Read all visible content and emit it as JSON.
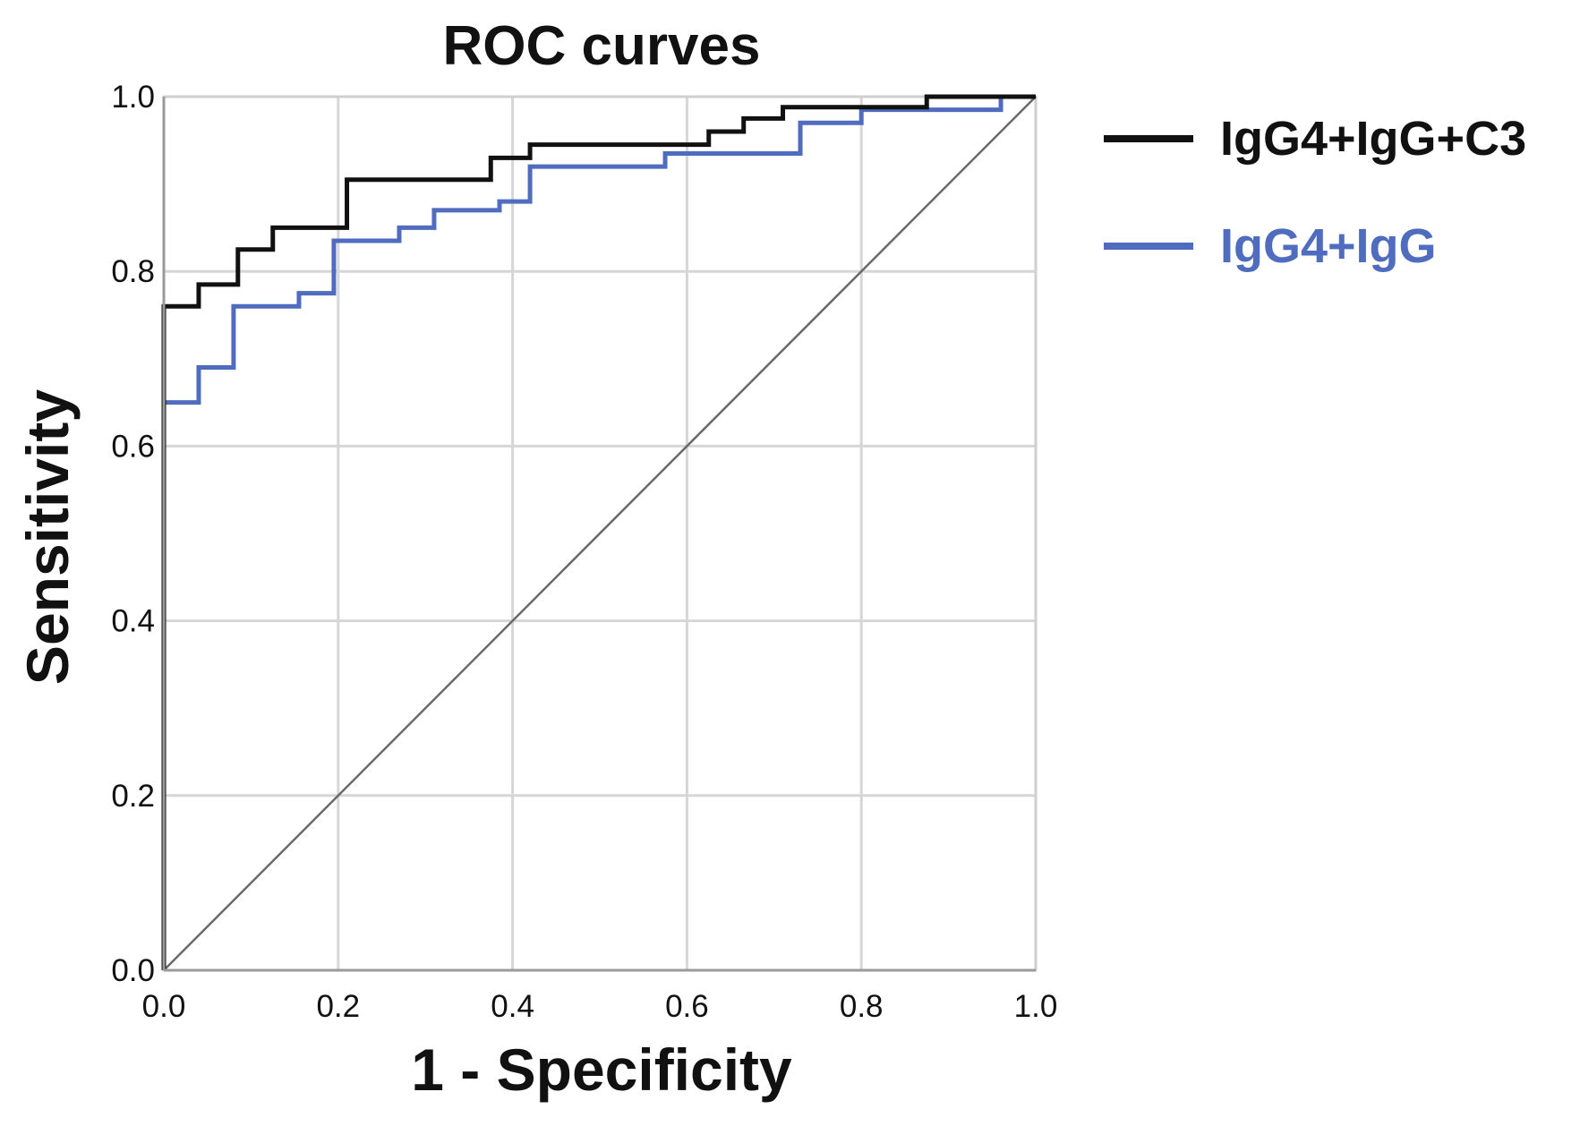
{
  "chart_data": {
    "type": "line",
    "title": "ROC curves",
    "xlabel": "1 - Specificity",
    "ylabel": "Sensitivity",
    "xlim": [
      0,
      1
    ],
    "ylim": [
      0,
      1
    ],
    "xticks": [
      0.0,
      0.2,
      0.4,
      0.6,
      0.8,
      1.0
    ],
    "yticks": [
      0.0,
      0.2,
      0.4,
      0.6,
      0.8,
      1.0
    ],
    "xtick_labels": [
      "0.0",
      "0.2",
      "0.4",
      "0.6",
      "0.8",
      "1.0"
    ],
    "ytick_labels": [
      "0.0",
      "0.2",
      "0.4",
      "0.6",
      "0.8",
      "1.0"
    ],
    "grid": true,
    "legend_position": "right",
    "series": [
      {
        "name": "IgG4+IgG+C3",
        "color": "#111111",
        "points": [
          [
            0.0,
            0.0
          ],
          [
            0.0,
            0.66
          ],
          [
            0.0,
            0.76
          ],
          [
            0.04,
            0.76
          ],
          [
            0.04,
            0.785
          ],
          [
            0.085,
            0.785
          ],
          [
            0.085,
            0.825
          ],
          [
            0.125,
            0.825
          ],
          [
            0.125,
            0.85
          ],
          [
            0.21,
            0.85
          ],
          [
            0.21,
            0.905
          ],
          [
            0.375,
            0.905
          ],
          [
            0.375,
            0.93
          ],
          [
            0.42,
            0.93
          ],
          [
            0.42,
            0.945
          ],
          [
            0.625,
            0.945
          ],
          [
            0.625,
            0.96
          ],
          [
            0.665,
            0.96
          ],
          [
            0.665,
            0.975
          ],
          [
            0.71,
            0.975
          ],
          [
            0.71,
            0.988
          ],
          [
            0.875,
            0.988
          ],
          [
            0.875,
            1.0
          ],
          [
            1.0,
            1.0
          ]
        ]
      },
      {
        "name": "IgG4+IgG",
        "color": "#4f6cbf",
        "points": [
          [
            0.0,
            0.0
          ],
          [
            0.0,
            0.65
          ],
          [
            0.04,
            0.65
          ],
          [
            0.04,
            0.69
          ],
          [
            0.08,
            0.69
          ],
          [
            0.08,
            0.76
          ],
          [
            0.155,
            0.76
          ],
          [
            0.155,
            0.775
          ],
          [
            0.195,
            0.775
          ],
          [
            0.195,
            0.835
          ],
          [
            0.27,
            0.835
          ],
          [
            0.27,
            0.85
          ],
          [
            0.31,
            0.85
          ],
          [
            0.31,
            0.87
          ],
          [
            0.385,
            0.87
          ],
          [
            0.385,
            0.88
          ],
          [
            0.42,
            0.88
          ],
          [
            0.42,
            0.92
          ],
          [
            0.575,
            0.92
          ],
          [
            0.575,
            0.935
          ],
          [
            0.73,
            0.935
          ],
          [
            0.73,
            0.97
          ],
          [
            0.8,
            0.97
          ],
          [
            0.8,
            0.985
          ],
          [
            0.96,
            0.985
          ],
          [
            0.96,
            1.0
          ],
          [
            1.0,
            1.0
          ]
        ]
      }
    ],
    "reference_line": {
      "name": "Reference Line",
      "color": "#6a6a6a",
      "points": [
        [
          0,
          0
        ],
        [
          1,
          1
        ]
      ]
    }
  }
}
